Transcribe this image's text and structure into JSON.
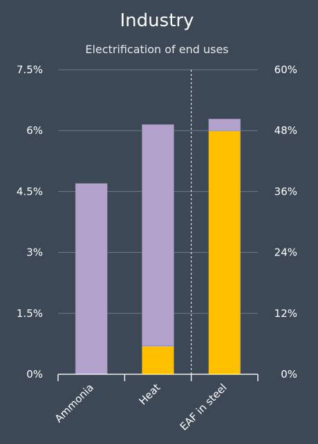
{
  "colors": {
    "background": "#3d4857",
    "text": "#ffffff",
    "subtext": "#e6e8ec",
    "grid": "#6e7a8a",
    "axis": "#f2f2f2",
    "series_purple": "#b3a2cc",
    "series_yellow": "#ffc000"
  },
  "chart_data": {
    "type": "bar",
    "stacked": true,
    "title": "Industry",
    "subtitle": "Electrification of end uses",
    "categories": [
      "Ammonia",
      "Heat",
      "EAF in steel"
    ],
    "y_left": {
      "range": [
        0,
        7.5
      ],
      "ticks": [
        0,
        1.5,
        3,
        4.5,
        6,
        7.5
      ],
      "tick_labels": [
        "0%",
        "1.5%",
        "3%",
        "4.5%",
        "6%",
        "7.5%"
      ]
    },
    "y_right": {
      "range": [
        0,
        60
      ],
      "ticks": [
        0,
        12,
        24,
        36,
        48,
        60
      ],
      "tick_labels": [
        "0%",
        "12%",
        "24%",
        "36%",
        "48%",
        "60%"
      ]
    },
    "series": [
      {
        "color": "#ffc000",
        "axis": [
          "left",
          "left",
          "right"
        ],
        "values": [
          0,
          0.7,
          48
        ]
      },
      {
        "color": "#b3a2cc",
        "axis": [
          "left",
          "left",
          "right"
        ],
        "values": [
          4.7,
          5.45,
          2.3
        ]
      }
    ],
    "grid": true,
    "divider_after_category": 1,
    "legend": "none"
  }
}
